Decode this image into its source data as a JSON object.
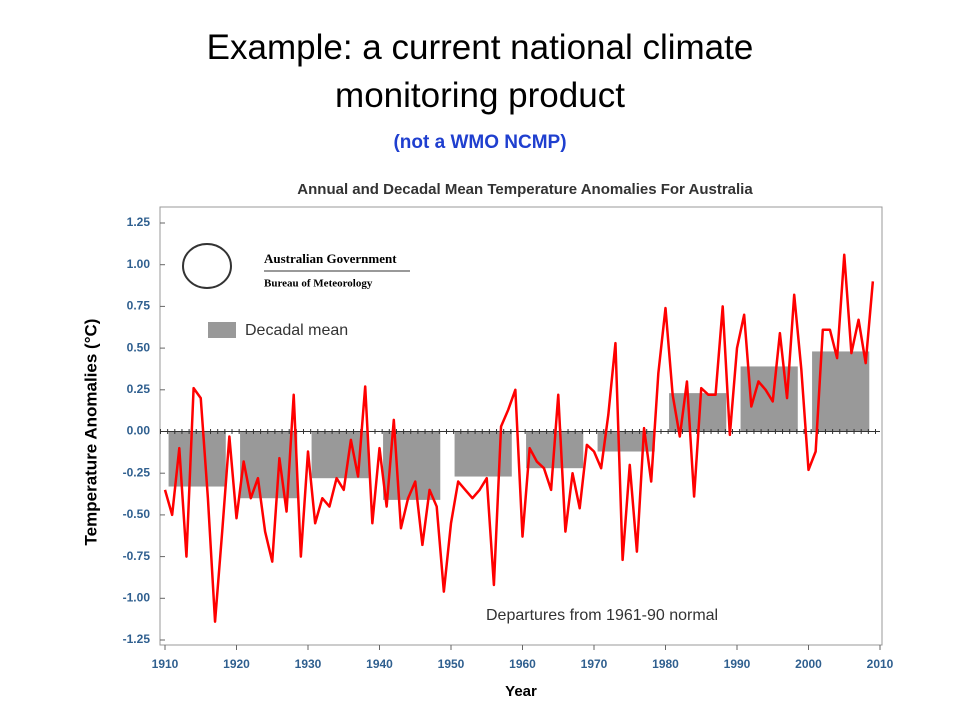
{
  "slide": {
    "title": "Example: a current national climate monitoring product",
    "subtitle": "(not a WMO NCMP)"
  },
  "chart_data": {
    "type": "line",
    "title": "Annual and Decadal Mean Temperature Anomalies For Australia",
    "ylabel": "Temperature Anomalies (°C)",
    "xlabel": "Year",
    "annotation": "Departures from 1961-90 normal",
    "logo": {
      "line1": "Australian Government",
      "line2": "Bureau of Meteorology"
    },
    "xlim": [
      1910,
      2010
    ],
    "xticks": [
      1910,
      1920,
      1930,
      1940,
      1950,
      1960,
      1970,
      1980,
      1990,
      2000,
      2010
    ],
    "ylim": [
      -1.25,
      1.25
    ],
    "yticks": [
      1.25,
      {
        "value": 1,
        "label": "1.00"
      },
      0.75,
      {
        "value": 0.5,
        "label": "0.50"
      },
      0.25,
      {
        "value": 0,
        "label": "0.00"
      },
      -0.25,
      {
        "value": -0.5,
        "label": "-0.50"
      },
      -0.75,
      {
        "value": -1,
        "label": "-1.00"
      },
      -1.25
    ],
    "x": [
      1910,
      1911,
      1912,
      1913,
      1914,
      1915,
      1916,
      1917,
      1918,
      1919,
      1920,
      1921,
      1922,
      1923,
      1924,
      1925,
      1926,
      1927,
      1928,
      1929,
      1930,
      1931,
      1932,
      1933,
      1934,
      1935,
      1936,
      1937,
      1938,
      1939,
      1940,
      1941,
      1942,
      1943,
      1944,
      1945,
      1946,
      1947,
      1948,
      1949,
      1950,
      1951,
      1952,
      1953,
      1954,
      1955,
      1956,
      1957,
      1958,
      1959,
      1960,
      1961,
      1962,
      1963,
      1964,
      1965,
      1966,
      1967,
      1968,
      1969,
      1970,
      1971,
      1972,
      1973,
      1974,
      1975,
      1976,
      1977,
      1978,
      1979,
      1980,
      1981,
      1982,
      1983,
      1984,
      1985,
      1986,
      1987,
      1988,
      1989,
      1990,
      1991,
      1992,
      1993,
      1994,
      1995,
      1996,
      1997,
      1998,
      1999,
      2000,
      2001,
      2002,
      2003,
      2004,
      2005,
      2006,
      2007,
      2008,
      2009
    ],
    "series": [
      {
        "color": "#ff0000",
        "values": [
          -0.35,
          -0.5,
          -0.1,
          -0.75,
          0.26,
          0.2,
          -0.4,
          -1.14,
          -0.6,
          -0.03,
          -0.52,
          -0.18,
          -0.4,
          -0.28,
          -0.6,
          -0.78,
          -0.16,
          -0.48,
          0.22,
          -0.75,
          -0.12,
          -0.55,
          -0.4,
          -0.45,
          -0.28,
          -0.35,
          -0.05,
          -0.27,
          0.27,
          -0.55,
          -0.1,
          -0.45,
          0.07,
          -0.58,
          -0.4,
          -0.3,
          -0.68,
          -0.35,
          -0.45,
          -0.96,
          -0.55,
          -0.3,
          -0.35,
          -0.4,
          -0.35,
          -0.28,
          -0.92,
          0.03,
          0.13,
          0.25,
          -0.63,
          -0.1,
          -0.18,
          -0.22,
          -0.35,
          0.22,
          -0.6,
          -0.25,
          -0.46,
          -0.08,
          -0.12,
          -0.22,
          0.1,
          0.53,
          -0.77,
          -0.2,
          -0.72,
          0.02,
          -0.3,
          0.35,
          0.74,
          0.22,
          -0.03,
          0.3,
          -0.39,
          0.26,
          0.22,
          0.22,
          0.75,
          -0.02,
          0.5,
          0.7,
          0.15,
          0.3,
          0.25,
          0.18,
          0.59,
          0.2,
          0.82,
          0.37,
          -0.23,
          -0.12,
          0.61,
          0.61,
          0.44,
          1.06,
          0.47,
          0.67,
          0.41,
          0.9
        ]
      }
    ],
    "decadal": {
      "name": "Decadal mean",
      "color": "#999999",
      "x": [
        1910,
        1920,
        1930,
        1940,
        1950,
        1960,
        1970,
        1980,
        1990,
        2000
      ],
      "values": [
        -0.33,
        -0.4,
        -0.28,
        -0.41,
        -0.27,
        -0.22,
        -0.12,
        0.23,
        0.39,
        0.48
      ]
    }
  }
}
